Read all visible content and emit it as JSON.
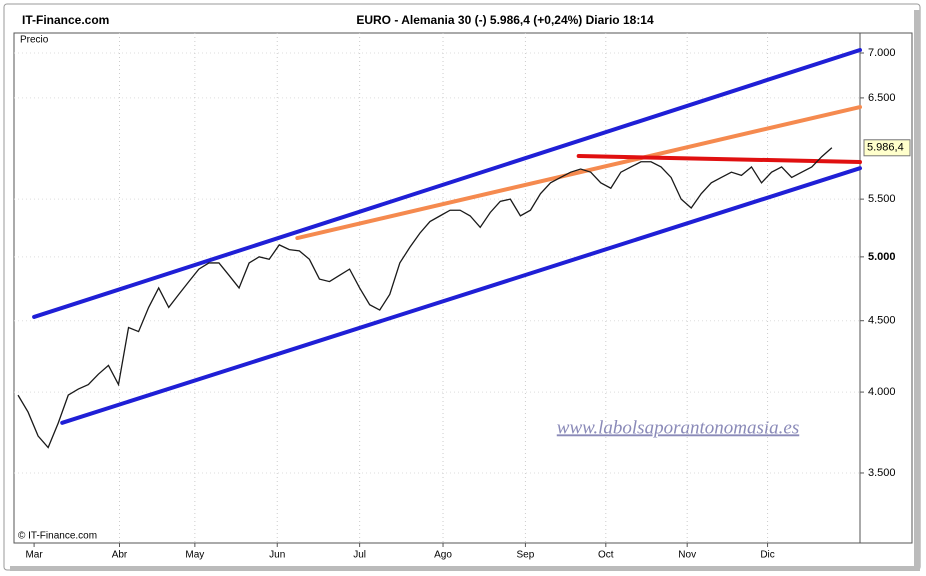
{
  "brand": "IT-Finance.com",
  "copyright": "© IT-Finance.com",
  "watermark": "www.labolsaporantonomasia.es",
  "chart_data": {
    "type": "line",
    "title": "EURO - Alemania 30 (-)   5.986,4 (+0,24%)   Diario  18:14",
    "panel_label": "Precio",
    "log_scale": true,
    "grid": true,
    "xlim": [
      -0.4,
      83.8
    ],
    "xticks": [
      {
        "value": 1.6,
        "label": "Mar"
      },
      {
        "value": 10.1,
        "label": "Abr"
      },
      {
        "value": 17.6,
        "label": "May"
      },
      {
        "value": 25.8,
        "label": "Jun"
      },
      {
        "value": 34,
        "label": "Jul"
      },
      {
        "value": 42.3,
        "label": "Ago"
      },
      {
        "value": 50.5,
        "label": "Sep"
      },
      {
        "value": 58.5,
        "label": "Oct"
      },
      {
        "value": 66.6,
        "label": "Nov"
      },
      {
        "value": 74.6,
        "label": "Dic"
      }
    ],
    "ylim": [
      3118,
      7235
    ],
    "yticks": [
      {
        "value": 3500,
        "label": "3.500"
      },
      {
        "value": 4000,
        "label": "4.000"
      },
      {
        "value": 4500,
        "label": "4.500"
      },
      {
        "value": 5000,
        "label": "5.000"
      },
      {
        "value": 5500,
        "label": "5.500"
      },
      {
        "value": 6500,
        "label": "6.500"
      },
      {
        "value": 7000,
        "label": "7.000"
      }
    ],
    "series": [
      {
        "color": "#1a1a1a",
        "x": [
          0,
          1,
          2,
          3,
          4,
          5,
          6,
          7,
          8,
          9,
          10,
          11,
          12,
          13,
          14,
          15,
          16,
          17,
          18,
          19,
          20,
          21,
          22,
          23,
          24,
          25,
          26,
          27,
          28,
          29,
          30,
          31,
          32,
          33,
          34,
          35,
          36,
          37,
          38,
          39,
          40,
          41,
          42,
          43,
          44,
          45,
          46,
          47,
          48,
          49,
          50,
          51,
          52,
          53,
          54,
          55,
          56,
          57,
          58,
          59,
          60,
          61,
          62,
          63,
          64,
          65,
          66,
          67,
          68,
          69,
          70,
          71,
          72,
          73,
          74,
          75,
          76,
          77,
          78,
          79,
          80,
          81
        ],
        "values": [
          3980,
          3870,
          3720,
          3650,
          3800,
          3980,
          4020,
          4050,
          4120,
          4180,
          4050,
          4450,
          4420,
          4600,
          4750,
          4600,
          4700,
          4800,
          4900,
          4950,
          4950,
          4850,
          4750,
          4950,
          5000,
          4980,
          5100,
          5060,
          5050,
          4980,
          4820,
          4800,
          4850,
          4900,
          4750,
          4620,
          4580,
          4700,
          4950,
          5080,
          5200,
          5300,
          5350,
          5400,
          5400,
          5350,
          5250,
          5380,
          5480,
          5500,
          5350,
          5400,
          5550,
          5650,
          5700,
          5750,
          5780,
          5750,
          5650,
          5600,
          5750,
          5800,
          5850,
          5850,
          5800,
          5700,
          5500,
          5420,
          5550,
          5650,
          5700,
          5750,
          5720,
          5800,
          5650,
          5750,
          5800,
          5700,
          5750,
          5800,
          5900,
          5986.4
        ],
        "last_label": "5.986,4"
      }
    ],
    "trend_lines": [
      {
        "color": "#1f1fd6",
        "x": [
          1.6,
          83.8
        ],
        "values": [
          4528,
          7035
        ]
      },
      {
        "color": "#1f1fd6",
        "x": [
          4.4,
          83.8
        ],
        "values": [
          3802,
          5788
        ]
      },
      {
        "color": "#f58a4f",
        "x": [
          27.8,
          83.8
        ],
        "values": [
          5158,
          6403
        ]
      },
      {
        "color": "#e01010",
        "x": [
          55.8,
          83.8
        ],
        "values": [
          5906,
          5847
        ]
      }
    ]
  }
}
